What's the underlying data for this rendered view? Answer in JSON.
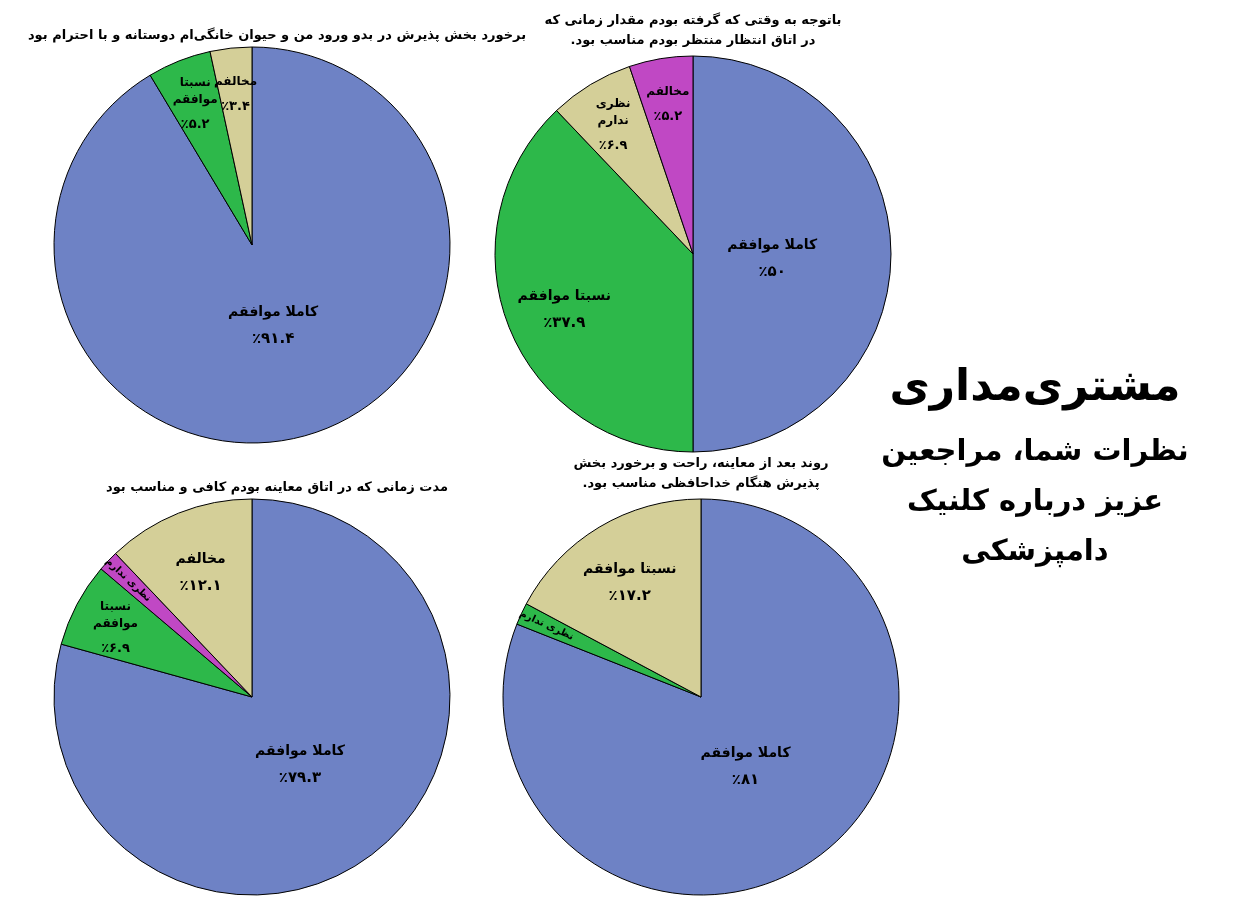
{
  "chart_data": [
    {
      "type": "pie",
      "title": "برخورد بخش پذیرش در بدو ورود من و حیوان خانگی‌ام دوستانه و با احترام بود",
      "categories": [
        "کاملا موافقم",
        "نسبتا موافقم",
        "مخالفم"
      ],
      "values": [
        91.4,
        5.2,
        3.4
      ],
      "colors": [
        "#6e82c5",
        "#2db84a",
        "#d4cf98"
      ],
      "value_labels": [
        "٪۹۱.۴",
        "٪۵.۲",
        "٪۳.۴"
      ]
    },
    {
      "type": "pie",
      "title": "باتوجه به وقتی که گرفته بودم مقدار زمانی که در اتاق انتظار منتظر بودم مناسب بود.",
      "categories": [
        "کاملا موافقم",
        "نسبتا موافقم",
        "نظری ندارم",
        "مخالفم"
      ],
      "values": [
        50,
        37.9,
        6.9,
        5.2
      ],
      "colors": [
        "#6e82c5",
        "#2db84a",
        "#d4cf98",
        "#c048c4"
      ],
      "value_labels": [
        "٪۵۰",
        "٪۳۷.۹",
        "٪۶.۹",
        "٪۵.۲"
      ]
    },
    {
      "type": "pie",
      "title": "مدت زمانی که در اتاق معاینه بودم کافی و مناسب بود",
      "categories": [
        "کاملا موافقم",
        "نسبتا موافقم",
        "نظری ندارم",
        "مخالفم"
      ],
      "values": [
        79.3,
        6.9,
        1.7,
        12.1
      ],
      "colors": [
        "#6e82c5",
        "#2db84a",
        "#c048c4",
        "#d4cf98"
      ],
      "value_labels": [
        "٪۷۹.۳",
        "٪۶.۹",
        null,
        "٪۱۲.۱"
      ]
    },
    {
      "type": "pie",
      "title": "روند بعد از معاینه، راحت و برخورد بخش پذیرش هنگام خداحافظی مناسب بود.",
      "categories": [
        "کاملا موافقم",
        "نظری ندارم",
        "نسبتا موافقم"
      ],
      "values": [
        81,
        1.8,
        17.2
      ],
      "colors": [
        "#6e82c5",
        "#2db84a",
        "#d4cf98"
      ],
      "value_labels": [
        "٪۸۱",
        null,
        "٪۱۷.۲"
      ]
    },
    {
      "type": "other",
      "title": "مشتری‌مداری",
      "subtitle": "نظرات شما، مراجعین عزیز درباره کلنیک دامپزشکی"
    }
  ]
}
